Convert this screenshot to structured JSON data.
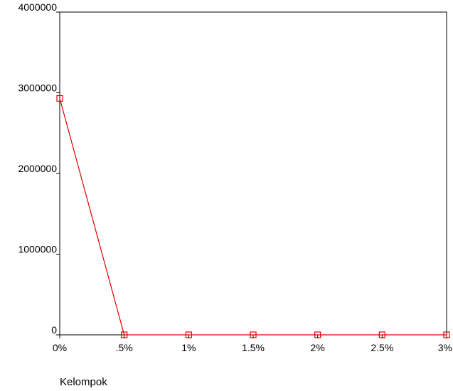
{
  "chart_data": {
    "type": "line",
    "title": "",
    "xlabel": "Kelompok",
    "ylabel": "",
    "categories": [
      "0%",
      ".5%",
      "1%",
      "1.5%",
      "2%",
      "2.5%",
      "3%"
    ],
    "series": [
      {
        "values": [
          2930000,
          0,
          0,
          0,
          0,
          0,
          0
        ],
        "color": "#e00000",
        "marker": "square"
      }
    ],
    "ylim": [
      0,
      4000000
    ],
    "yticks": [
      0,
      1000000,
      2000000,
      3000000,
      4000000
    ],
    "ytick_labels": [
      "0",
      "1000000",
      "2000000",
      "3000000",
      "4000000"
    ],
    "grid": false,
    "legend": "none",
    "frame": true
  }
}
